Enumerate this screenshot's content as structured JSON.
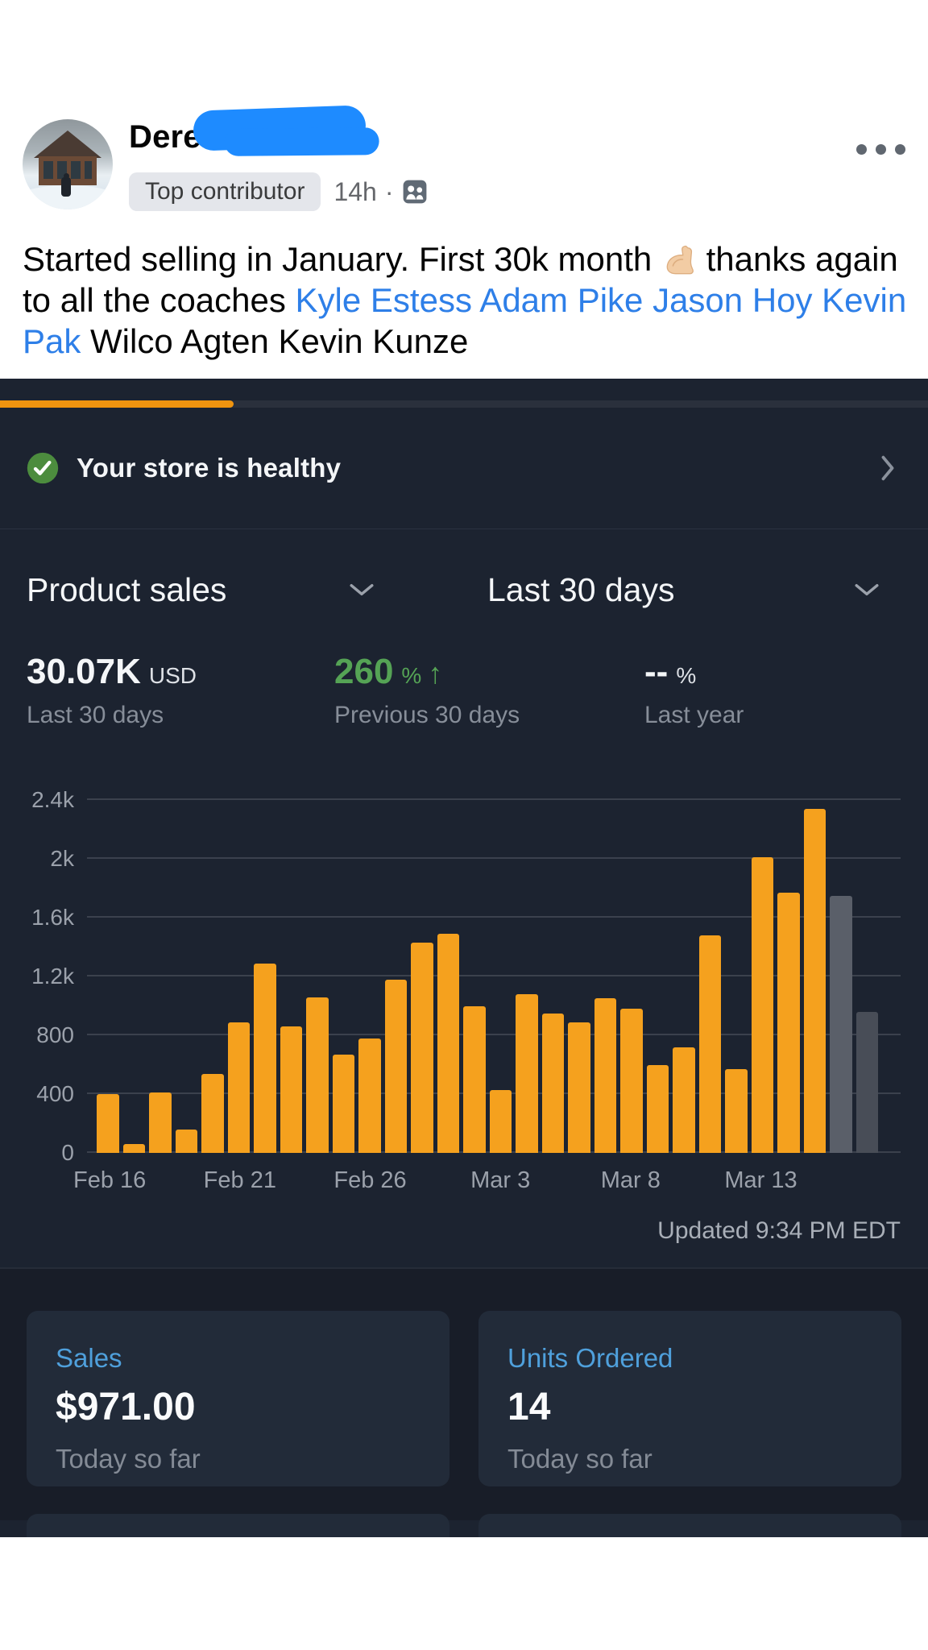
{
  "post": {
    "author_name": "Derek",
    "name_redacted": true,
    "badge": "Top contributor",
    "timestamp": "14h",
    "separator": "·",
    "privacy_icon": "group-icon",
    "menu_icon": "three-dots-icon",
    "link_color": "#2E7FE8",
    "redaction_color": "#1E8BFF",
    "body_segments": [
      {
        "type": "text",
        "text": "Started selling in January. First 30k month "
      },
      {
        "type": "emoji",
        "name": "flexed-biceps-light-skin-emoji",
        "char": "💪🏻"
      },
      {
        "type": "text",
        "text": " thanks again to all the coaches "
      },
      {
        "type": "link",
        "text": "Kyle Estess Adam Pike Jason Hoy Kevin Pak"
      },
      {
        "type": "text",
        "text": " Wilco Agten Kevin Kunze"
      }
    ]
  },
  "dashboard": {
    "accent_orange": "#F5A11E",
    "progress_pct": 25,
    "health": {
      "label": "Your store is healthy",
      "status": "healthy",
      "status_color": "#4C8C3E",
      "chevron": "right"
    },
    "selectors": [
      {
        "label": "Product sales",
        "chevron": "down"
      },
      {
        "label": "Last 30 days",
        "chevron": "down"
      }
    ],
    "stats": [
      {
        "value": "30.07K",
        "unit": "USD",
        "arrow": "",
        "label": "Last 30 days",
        "value_color": "#F4F6F8",
        "unit_color": "#DEE1E6"
      },
      {
        "value": "260",
        "unit": "%",
        "arrow": "↑",
        "label": "Previous 30 days",
        "value_color": "#55A355",
        "unit_color": "#55A355"
      },
      {
        "value": "--",
        "unit": "%",
        "arrow": "",
        "label": "Last year",
        "value_color": "#F4F6F8",
        "unit_color": "#DEE1E6"
      }
    ],
    "updated": "Updated 9:34 PM EDT",
    "cards": [
      {
        "label": "Sales",
        "value": "$971.00",
        "sub": "Today so far"
      },
      {
        "label": "Units Ordered",
        "value": "14",
        "sub": "Today so far"
      }
    ],
    "partial_cards_visible": 2
  },
  "chart_data": {
    "type": "bar",
    "title": "",
    "xlabel": "",
    "ylabel": "",
    "num_bars": 30,
    "values": [
      400,
      60,
      410,
      160,
      535,
      890,
      1290,
      860,
      1060,
      670,
      780,
      1180,
      1430,
      1490,
      1000,
      430,
      1080,
      950,
      890,
      1050,
      980,
      600,
      720,
      1480,
      570,
      2010,
      1770,
      2340,
      1750,
      960
    ],
    "bar_color_default": "#F5A11E",
    "special_bars": [
      {
        "index": 28,
        "color": "#5A5F69",
        "note": "gray bar"
      },
      {
        "index": 29,
        "color": "#484D57",
        "note": "dark gray bar"
      }
    ],
    "x_tick_labels": [
      "Feb 16",
      "Feb 21",
      "Feb 26",
      "Mar 3",
      "Mar 8",
      "Mar 13"
    ],
    "x_tick_positions": [
      0,
      5,
      10,
      15,
      20,
      25
    ],
    "y_ticks": [
      {
        "value": 0,
        "label": "0"
      },
      {
        "value": 400,
        "label": "400"
      },
      {
        "value": 800,
        "label": "800"
      },
      {
        "value": 1200,
        "label": "1.2k"
      },
      {
        "value": 1600,
        "label": "1.6k"
      },
      {
        "value": 2000,
        "label": "2k"
      },
      {
        "value": 2400,
        "label": "2.4k"
      }
    ],
    "ylim": [
      0,
      2400
    ],
    "grid": "horizontal",
    "legend": "none"
  }
}
